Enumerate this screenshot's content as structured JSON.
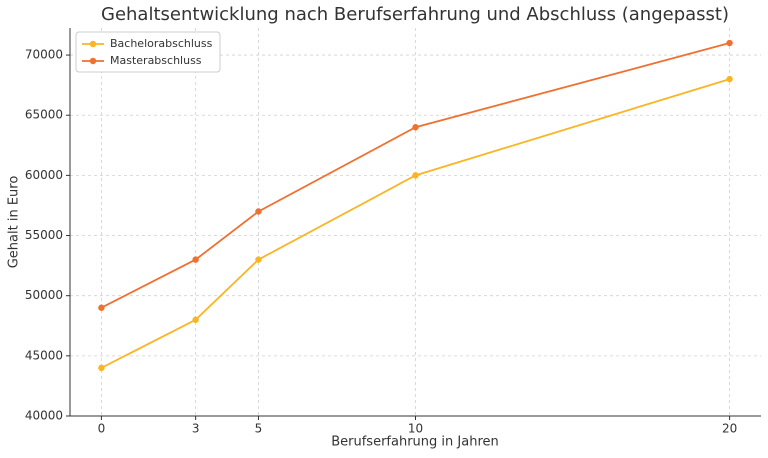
{
  "chart_data": {
    "type": "line",
    "title": "Gehaltsentwicklung nach Berufserfahrung und Abschluss (angepasst)",
    "x_label": "Berufserfahrung in Jahren",
    "y_label": "Gehalt in Euro",
    "x": [
      0,
      3,
      5,
      10,
      20
    ],
    "series": [
      {
        "name": "Bachelorabschluss",
        "color": "#fbb423",
        "values": [
          44000,
          48000,
          53000,
          60000,
          68000
        ]
      },
      {
        "name": "Masterabschluss",
        "color": "#f07030",
        "values": [
          49000,
          53000,
          57000,
          64000,
          71000
        ]
      }
    ],
    "xlim": [
      -1,
      21
    ],
    "xticks": [
      0,
      3,
      5,
      10,
      20
    ],
    "ylim": [
      40000,
      72250
    ],
    "yticks": [
      40000,
      45000,
      50000,
      55000,
      60000,
      65000,
      70000
    ],
    "grid": true,
    "legend": "upper-left"
  }
}
